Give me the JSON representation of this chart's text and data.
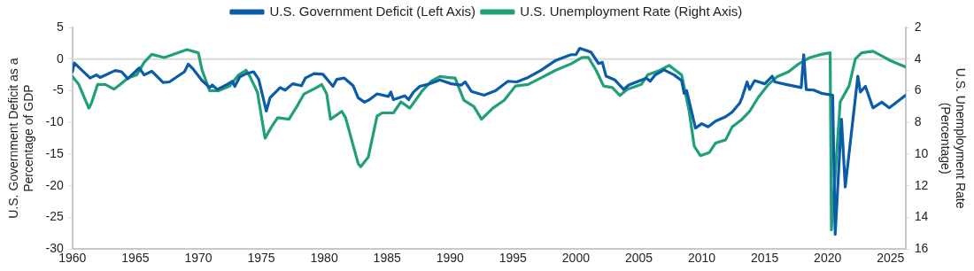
{
  "chart_data": {
    "type": "line",
    "ylabel": "U.S. Government Deficit as a\nPercentage of GDP",
    "y2label": "U.S. Unemployment Rate\n(Percentage)",
    "xlim": [
      1960,
      2026.2
    ],
    "xticks": [
      1960,
      1965,
      1970,
      1975,
      1980,
      1985,
      1990,
      1995,
      2000,
      2005,
      2010,
      2015,
      2020,
      2025
    ],
    "ylim": [
      -30,
      5
    ],
    "yticks": [
      -30,
      -25,
      -20,
      -15,
      -10,
      -5,
      0,
      5
    ],
    "y2lim": [
      16,
      2
    ],
    "y2ticks": [
      16,
      14,
      12,
      10,
      8,
      6,
      4,
      2
    ],
    "grid": false,
    "legend": "top",
    "marker": "none",
    "line_style": "solid",
    "ref_lines": [
      {
        "axis": "y",
        "value": 0,
        "color": "#d9d9d9"
      }
    ],
    "series": [
      {
        "name": "U.S. Government Deficit (Left Axis)",
        "color": "#0a5ca8",
        "x": [
          1960,
          1960.15,
          1961.4,
          1961.9,
          1962.2,
          1963.4,
          1963.9,
          1964.4,
          1965.3,
          1965.7,
          1966.3,
          1967.2,
          1967.7,
          1968.3,
          1968.9,
          1969.2,
          1969.6,
          1970.3,
          1970.9,
          1971.1,
          1971.5,
          1972.2,
          1972.7,
          1972.9,
          1973.3,
          1973.8,
          1974.4,
          1974.8,
          1975.4,
          1975.7,
          1976.5,
          1976.9,
          1977.5,
          1978.2,
          1978.5,
          1979.2,
          1979.9,
          1980.7,
          1981.0,
          1981.6,
          1982.3,
          1982.7,
          1983.2,
          1983.6,
          1984.2,
          1985.1,
          1985.3,
          1985.5,
          1986.4,
          1986.7,
          1987.1,
          1987.6,
          1988.4,
          1989.2,
          1990.1,
          1990.9,
          1991.2,
          1991.7,
          1992.7,
          1993.6,
          1994.6,
          1995.3,
          1996.2,
          1997.2,
          1998.4,
          1999.6,
          2000.0,
          2000.3,
          2001.2,
          2001.8,
          2002.1,
          2002.4,
          2003.1,
          2003.8,
          2004.2,
          2005.1,
          2005.6,
          2005.9,
          2006.3,
          2007.0,
          2007.8,
          2008.4,
          2008.6,
          2008.8,
          2009.5,
          2010.0,
          2010.5,
          2011.1,
          2011.9,
          2012.4,
          2013.0,
          2013.2,
          2013.6,
          2013.8,
          2014.2,
          2015.0,
          2015.6,
          2015.8,
          2016.7,
          2017.9,
          2018.1,
          2018.3,
          2018.9,
          2019.5,
          2020.4,
          2020.6,
          2021.1,
          2021.4,
          2022.4,
          2022.6,
          2023.0,
          2023.6,
          2024.3,
          2024.9,
          2026.2
        ],
        "values": [
          -2.0,
          -0.6,
          -3.0,
          -2.5,
          -2.9,
          -1.8,
          -2.0,
          -3.1,
          -1.4,
          -2.5,
          -1.9,
          -3.7,
          -3.6,
          -2.8,
          -2.0,
          -0.8,
          -1.6,
          -3.4,
          -4.5,
          -4.1,
          -4.8,
          -4.1,
          -3.5,
          -4.3,
          -2.8,
          -2.3,
          -2.0,
          -3.2,
          -8.2,
          -6.1,
          -4.5,
          -4.9,
          -3.9,
          -4.2,
          -3.0,
          -2.3,
          -2.4,
          -4.3,
          -3.2,
          -3.0,
          -4.2,
          -6.1,
          -6.8,
          -6.4,
          -5.5,
          -5.9,
          -5.2,
          -6.4,
          -5.8,
          -6.4,
          -5.2,
          -4.3,
          -3.9,
          -3.3,
          -3.9,
          -4.1,
          -3.6,
          -5.1,
          -5.7,
          -5.0,
          -3.5,
          -3.6,
          -2.9,
          -1.8,
          -0.2,
          0.7,
          0.7,
          1.7,
          1.1,
          -0.7,
          -0.5,
          -2.7,
          -3.3,
          -4.8,
          -4.1,
          -3.4,
          -3.0,
          -3.5,
          -2.5,
          -1.7,
          -2.5,
          -3.4,
          -5.4,
          -5.0,
          -10.9,
          -10.2,
          -10.7,
          -9.8,
          -9.1,
          -8.4,
          -7.0,
          -6.1,
          -3.6,
          -4.8,
          -3.4,
          -3.9,
          -2.7,
          -3.6,
          -4.0,
          -4.5,
          0.7,
          -4.8,
          -4.9,
          -5.4,
          -5.7,
          -27.7,
          -9.5,
          -20.2,
          -2.7,
          -5.2,
          -4.3,
          -7.7,
          -6.8,
          -7.7,
          -5.7
        ]
      },
      {
        "name": "U.S. Unemployment Rate (Right Axis)",
        "color": "#20a07a",
        "axis": "y2",
        "x": [
          1960,
          1960.5,
          1961.3,
          1961.5,
          1962.0,
          1962.6,
          1963.3,
          1963.8,
          1964.4,
          1965.1,
          1965.7,
          1966.3,
          1967.3,
          1968.4,
          1969.1,
          1970.0,
          1970.3,
          1970.9,
          1971.6,
          1972.5,
          1973.2,
          1973.8,
          1974.1,
          1974.7,
          1975.3,
          1975.8,
          1976.3,
          1977.2,
          1977.9,
          1978.4,
          1979.4,
          1979.8,
          1980.2,
          1980.5,
          1981.4,
          1981.7,
          1982.7,
          1982.9,
          1983.5,
          1984.2,
          1984.6,
          1985.5,
          1986.1,
          1986.8,
          1987.8,
          1988.5,
          1989.2,
          1990.4,
          1991.1,
          1991.9,
          1992.5,
          1993.4,
          1994.3,
          1995.2,
          1996.2,
          1997.2,
          1998.4,
          1999.6,
          2000.5,
          2001.0,
          2001.6,
          2002.2,
          2002.9,
          2003.5,
          2004.1,
          2005.2,
          2005.7,
          2006.7,
          2007.4,
          2008.4,
          2009.0,
          2009.4,
          2009.9,
          2010.6,
          2011.1,
          2011.9,
          2012.4,
          2013.2,
          2013.8,
          2014.5,
          2015.3,
          2016.0,
          2016.9,
          2017.7,
          2018.6,
          2019.5,
          2020.2,
          2020.3,
          2021.0,
          2021.7,
          2022.2,
          2022.7,
          2023.6,
          2024.3,
          2025.0,
          2026.2
        ],
        "values": [
          5.1,
          5.6,
          7.1,
          6.8,
          5.6,
          5.6,
          5.9,
          5.6,
          5.2,
          5.0,
          4.2,
          3.7,
          3.9,
          3.6,
          3.4,
          3.6,
          4.7,
          6.0,
          6.0,
          5.7,
          5.0,
          4.7,
          5.1,
          6.1,
          9.0,
          8.3,
          7.7,
          7.8,
          6.9,
          6.2,
          5.8,
          5.6,
          6.2,
          7.8,
          7.3,
          7.7,
          10.6,
          10.8,
          10.2,
          7.6,
          7.4,
          7.4,
          6.7,
          7.1,
          6.0,
          5.4,
          5.1,
          5.2,
          6.6,
          7.0,
          7.8,
          7.1,
          6.6,
          5.7,
          5.6,
          5.2,
          4.7,
          4.3,
          3.9,
          3.9,
          4.7,
          5.7,
          5.8,
          6.3,
          5.9,
          5.6,
          5.0,
          4.7,
          4.4,
          5.0,
          7.3,
          9.5,
          10.1,
          9.9,
          9.3,
          9.1,
          8.3,
          7.8,
          7.3,
          6.4,
          5.6,
          5.1,
          4.8,
          4.3,
          3.9,
          3.7,
          3.6,
          14.8,
          6.7,
          5.7,
          4.0,
          3.6,
          3.5,
          3.8,
          4.1,
          4.5
        ]
      }
    ]
  }
}
